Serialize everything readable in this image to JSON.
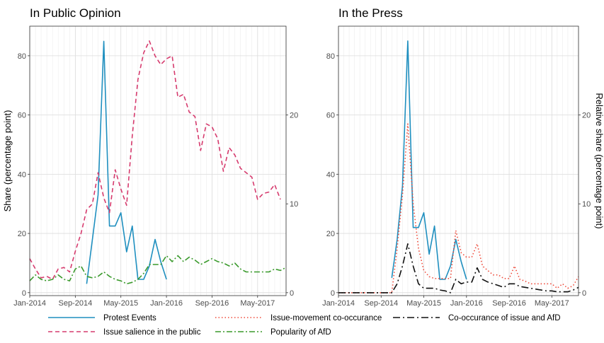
{
  "chart_data": [
    {
      "type": "line",
      "title": "In Public Opinion",
      "ylabel": "Share (percentage point)",
      "ylabel_right": "",
      "xlim": [
        "2014-01",
        "2017-10"
      ],
      "ylim_left": [
        -1,
        90
      ],
      "ylim_right": [
        -0.33,
        30
      ],
      "x_ticks": [
        "Jan-2014",
        "Sep-2014",
        "May-2015",
        "Jan-2016",
        "Sep-2016",
        "May-2017"
      ],
      "y_ticks_left": [
        "0",
        "20",
        "40",
        "60",
        "80"
      ],
      "y_ticks_right": [
        "0",
        "10",
        "20"
      ],
      "grid": true,
      "series": [
        {
          "name": "Protest Events",
          "color": "#1f8fbf",
          "dash": "solid",
          "axis": "right",
          "points": [
            [
              "2014-11",
              1.0
            ],
            [
              "2014-12",
              6.0
            ],
            [
              "2015-01",
              11.0
            ],
            [
              "2015-02",
              28.3
            ],
            [
              "2015-03",
              7.5
            ],
            [
              "2015-04",
              7.5
            ],
            [
              "2015-05",
              9.0
            ],
            [
              "2015-06",
              4.6
            ],
            [
              "2015-07",
              7.5
            ],
            [
              "2015-08",
              1.5
            ],
            [
              "2015-09",
              1.5
            ],
            [
              "2015-10",
              3.0
            ],
            [
              "2015-11",
              6.0
            ],
            [
              "2015-12",
              3.5
            ],
            [
              "2016-01",
              1.5
            ]
          ]
        },
        {
          "name": "Issue salience in the public",
          "color": "#d63b6e",
          "dash": "dashed",
          "axis": "left",
          "points": [
            [
              "2014-01",
              11.5
            ],
            [
              "2014-02",
              8.0
            ],
            [
              "2014-03",
              5.0
            ],
            [
              "2014-04",
              5.5
            ],
            [
              "2014-05",
              4.5
            ],
            [
              "2014-06",
              8.0
            ],
            [
              "2014-07",
              8.5
            ],
            [
              "2014-08",
              7.0
            ],
            [
              "2014-09",
              14.0
            ],
            [
              "2014-10",
              20.0
            ],
            [
              "2014-11",
              28.0
            ],
            [
              "2014-12",
              30.0
            ],
            [
              "2015-01",
              40.5
            ],
            [
              "2015-02",
              32.0
            ],
            [
              "2015-03",
              27.0
            ],
            [
              "2015-04",
              41.5
            ],
            [
              "2015-05",
              35.0
            ],
            [
              "2015-06",
              29.5
            ],
            [
              "2015-07",
              53.0
            ],
            [
              "2015-08",
              72.0
            ],
            [
              "2015-09",
              81.0
            ],
            [
              "2015-10",
              85.0
            ],
            [
              "2015-11",
              80.0
            ],
            [
              "2015-12",
              77.0
            ],
            [
              "2016-01",
              79.0
            ],
            [
              "2016-02",
              80.0
            ],
            [
              "2016-03",
              66.0
            ],
            [
              "2016-04",
              67.0
            ],
            [
              "2016-05",
              61.0
            ],
            [
              "2016-06",
              59.5
            ],
            [
              "2016-07",
              48.0
            ],
            [
              "2016-08",
              57.0
            ],
            [
              "2016-09",
              56.0
            ],
            [
              "2016-10",
              52.0
            ],
            [
              "2016-11",
              41.0
            ],
            [
              "2016-12",
              49.0
            ],
            [
              "2017-01",
              46.5
            ],
            [
              "2017-02",
              42.0
            ],
            [
              "2017-03",
              40.5
            ],
            [
              "2017-04",
              39.0
            ],
            [
              "2017-05",
              31.5
            ],
            [
              "2017-06",
              33.5
            ],
            [
              "2017-07",
              34.0
            ],
            [
              "2017-08",
              36.5
            ],
            [
              "2017-09",
              31.5
            ]
          ]
        },
        {
          "name": "Popularity of AfD",
          "color": "#3a9a2c",
          "dash": "dashdot",
          "axis": "left",
          "points": [
            [
              "2014-01",
              4.0
            ],
            [
              "2014-02",
              6.0
            ],
            [
              "2014-03",
              4.5
            ],
            [
              "2014-04",
              4.0
            ],
            [
              "2014-05",
              4.5
            ],
            [
              "2014-06",
              6.0
            ],
            [
              "2014-07",
              4.5
            ],
            [
              "2014-08",
              4.0
            ],
            [
              "2014-09",
              8.0
            ],
            [
              "2014-10",
              9.0
            ],
            [
              "2014-11",
              5.5
            ],
            [
              "2014-12",
              5.0
            ],
            [
              "2015-01",
              5.5
            ],
            [
              "2015-02",
              7.0
            ],
            [
              "2015-03",
              5.5
            ],
            [
              "2015-04",
              4.5
            ],
            [
              "2015-05",
              4.0
            ],
            [
              "2015-06",
              3.0
            ],
            [
              "2015-07",
              3.5
            ],
            [
              "2015-08",
              4.5
            ],
            [
              "2015-09",
              6.5
            ],
            [
              "2015-10",
              9.5
            ],
            [
              "2015-11",
              9.5
            ],
            [
              "2015-12",
              9.5
            ],
            [
              "2016-01",
              12.5
            ],
            [
              "2016-02",
              10.5
            ],
            [
              "2016-03",
              12.5
            ],
            [
              "2016-04",
              10.5
            ],
            [
              "2016-05",
              12.0
            ],
            [
              "2016-06",
              11.0
            ],
            [
              "2016-07",
              9.5
            ],
            [
              "2016-08",
              10.5
            ],
            [
              "2016-09",
              11.5
            ],
            [
              "2016-10",
              10.5
            ],
            [
              "2016-11",
              10.0
            ],
            [
              "2016-12",
              9.0
            ],
            [
              "2017-01",
              10.0
            ],
            [
              "2017-02",
              8.0
            ],
            [
              "2017-03",
              7.0
            ],
            [
              "2017-04",
              7.0
            ],
            [
              "2017-05",
              7.0
            ],
            [
              "2017-06",
              7.0
            ],
            [
              "2017-07",
              7.0
            ],
            [
              "2017-08",
              8.0
            ],
            [
              "2017-09",
              7.5
            ],
            [
              "2017-10",
              8.5
            ]
          ]
        }
      ]
    },
    {
      "type": "line",
      "title": "In the Press",
      "ylabel": "",
      "ylabel_right": "Relative share (percentage point)",
      "xlim": [
        "2014-01",
        "2017-10"
      ],
      "ylim_left": [
        -1,
        90
      ],
      "ylim_right": [
        -0.33,
        30
      ],
      "x_ticks": [
        "Jan-2014",
        "Sep-2014",
        "May-2015",
        "Jan-2016",
        "Sep-2016",
        "May-2017"
      ],
      "y_ticks_left": [
        "0",
        "20",
        "40",
        "60",
        "80"
      ],
      "y_ticks_right": [
        "0",
        "10",
        "20"
      ],
      "grid": true,
      "series": [
        {
          "name": "Protest Events",
          "color": "#1f8fbf",
          "dash": "solid",
          "axis": "left",
          "points": [
            [
              "2014-11",
              5.0
            ],
            [
              "2014-12",
              18.0
            ],
            [
              "2015-01",
              36.0
            ],
            [
              "2015-02",
              85.0
            ],
            [
              "2015-03",
              22.0
            ],
            [
              "2015-04",
              22.0
            ],
            [
              "2015-05",
              27.0
            ],
            [
              "2015-06",
              13.0
            ],
            [
              "2015-07",
              22.5
            ],
            [
              "2015-08",
              4.5
            ],
            [
              "2015-09",
              4.5
            ],
            [
              "2015-10",
              9.0
            ],
            [
              "2015-11",
              18.0
            ],
            [
              "2015-12",
              10.5
            ],
            [
              "2016-01",
              4.5
            ]
          ]
        },
        {
          "name": "Issue-movement co-occurance",
          "color": "#ef4a3a",
          "dash": "dotted",
          "axis": "right",
          "points": [
            [
              "2014-01",
              0
            ],
            [
              "2014-02",
              0
            ],
            [
              "2014-03",
              0
            ],
            [
              "2014-04",
              0
            ],
            [
              "2014-05",
              0
            ],
            [
              "2014-06",
              0
            ],
            [
              "2014-07",
              0
            ],
            [
              "2014-08",
              0
            ],
            [
              "2014-09",
              0
            ],
            [
              "2014-10",
              0
            ],
            [
              "2014-11",
              0
            ],
            [
              "2014-12",
              5.0
            ],
            [
              "2015-01",
              11.0
            ],
            [
              "2015-02",
              19.0
            ],
            [
              "2015-03",
              10.0
            ],
            [
              "2015-04",
              5.0
            ],
            [
              "2015-05",
              2.5
            ],
            [
              "2015-06",
              1.8
            ],
            [
              "2015-07",
              1.6
            ],
            [
              "2015-08",
              1.6
            ],
            [
              "2015-09",
              1.6
            ],
            [
              "2015-10",
              1.6
            ],
            [
              "2015-11",
              7.0
            ],
            [
              "2015-12",
              4.5
            ],
            [
              "2016-01",
              4.0
            ],
            [
              "2016-02",
              4.0
            ],
            [
              "2016-03",
              5.5
            ],
            [
              "2016-04",
              3.0
            ],
            [
              "2016-05",
              2.5
            ],
            [
              "2016-06",
              2.0
            ],
            [
              "2016-07",
              2.0
            ],
            [
              "2016-08",
              1.6
            ],
            [
              "2016-09",
              1.6
            ],
            [
              "2016-10",
              3.0
            ],
            [
              "2016-11",
              1.5
            ],
            [
              "2016-12",
              1.3
            ],
            [
              "2017-01",
              1.0
            ],
            [
              "2017-02",
              1.0
            ],
            [
              "2017-03",
              1.0
            ],
            [
              "2017-04",
              1.0
            ],
            [
              "2017-05",
              1.0
            ],
            [
              "2017-06",
              0.5
            ],
            [
              "2017-07",
              1.0
            ],
            [
              "2017-08",
              0.5
            ],
            [
              "2017-09",
              0.8
            ],
            [
              "2017-10",
              1.8
            ]
          ]
        },
        {
          "name": "Co-occurance of issue and AfD",
          "color": "#111111",
          "dash": "longdash",
          "axis": "right",
          "points": [
            [
              "2014-01",
              0
            ],
            [
              "2014-02",
              0
            ],
            [
              "2014-03",
              0
            ],
            [
              "2014-04",
              0
            ],
            [
              "2014-05",
              0
            ],
            [
              "2014-06",
              0
            ],
            [
              "2014-07",
              0
            ],
            [
              "2014-08",
              0
            ],
            [
              "2014-09",
              0
            ],
            [
              "2014-10",
              0
            ],
            [
              "2014-11",
              0
            ],
            [
              "2014-12",
              1.0
            ],
            [
              "2015-01",
              3.0
            ],
            [
              "2015-02",
              5.5
            ],
            [
              "2015-03",
              3.0
            ],
            [
              "2015-04",
              1.0
            ],
            [
              "2015-05",
              0.5
            ],
            [
              "2015-06",
              0.5
            ],
            [
              "2015-07",
              0.5
            ],
            [
              "2015-08",
              0.3
            ],
            [
              "2015-09",
              0.2
            ],
            [
              "2015-10",
              0.0
            ],
            [
              "2015-11",
              1.5
            ],
            [
              "2015-12",
              1.0
            ],
            [
              "2016-01",
              1.2
            ],
            [
              "2016-02",
              1.2
            ],
            [
              "2016-03",
              2.8
            ],
            [
              "2016-04",
              1.5
            ],
            [
              "2016-05",
              1.2
            ],
            [
              "2016-06",
              1.0
            ],
            [
              "2016-07",
              0.8
            ],
            [
              "2016-08",
              0.6
            ],
            [
              "2016-09",
              1.0
            ],
            [
              "2016-10",
              1.0
            ],
            [
              "2016-11",
              0.7
            ],
            [
              "2016-12",
              0.6
            ],
            [
              "2017-01",
              0.5
            ],
            [
              "2017-02",
              0.4
            ],
            [
              "2017-03",
              0.3
            ],
            [
              "2017-04",
              0.2
            ],
            [
              "2017-05",
              0.2
            ],
            [
              "2017-06",
              0.1
            ],
            [
              "2017-07",
              0.1
            ],
            [
              "2017-08",
              0.1
            ],
            [
              "2017-09",
              0.3
            ],
            [
              "2017-10",
              0.6
            ]
          ]
        }
      ]
    }
  ],
  "legend": [
    {
      "label": "Protest Events",
      "color": "#1f8fbf",
      "dash": "solid"
    },
    {
      "label": "Issue-movement co-occurance",
      "color": "#ef4a3a",
      "dash": "dotted"
    },
    {
      "label": "Co-occurance of issue and AfD",
      "color": "#111111",
      "dash": "longdash"
    },
    {
      "label": "Issue salience in the public",
      "color": "#d63b6e",
      "dash": "dashed"
    },
    {
      "label": "Popularity of AfD",
      "color": "#3a9a2c",
      "dash": "dashdot"
    }
  ]
}
